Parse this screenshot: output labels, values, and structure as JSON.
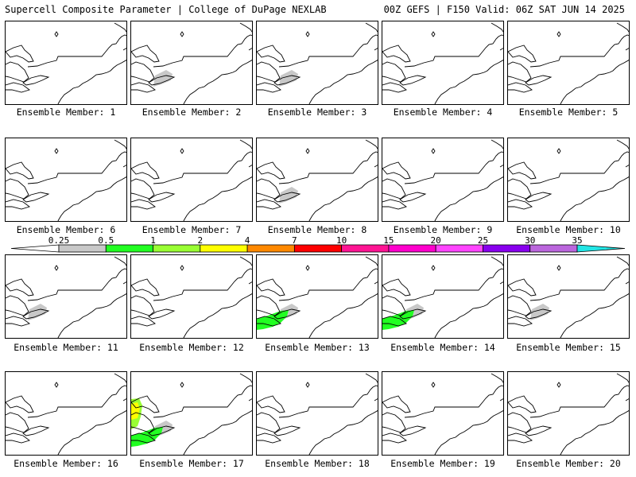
{
  "header": {
    "left": "Supercell Composite Parameter | College of DuPage NEXLAB",
    "right": "00Z GEFS | F150 Valid: 06Z SAT JUN 14 2025"
  },
  "caption_prefix": "Ensemble Member: ",
  "members": [
    {
      "number": "1",
      "shading": []
    },
    {
      "number": "2",
      "shading": [
        "gray"
      ]
    },
    {
      "number": "3",
      "shading": [
        "gray"
      ]
    },
    {
      "number": "4",
      "shading": []
    },
    {
      "number": "5",
      "shading": []
    },
    {
      "number": "6",
      "shading": []
    },
    {
      "number": "7",
      "shading": []
    },
    {
      "number": "8",
      "shading": [
        "gray"
      ]
    },
    {
      "number": "9",
      "shading": []
    },
    {
      "number": "10",
      "shading": []
    },
    {
      "number": "11",
      "shading": [
        "gray"
      ]
    },
    {
      "number": "12",
      "shading": []
    },
    {
      "number": "13",
      "shading": [
        "gray",
        "green"
      ]
    },
    {
      "number": "14",
      "shading": [
        "gray",
        "green"
      ]
    },
    {
      "number": "15",
      "shading": [
        "gray"
      ]
    },
    {
      "number": "16",
      "shading": []
    },
    {
      "number": "17",
      "shading": [
        "gray",
        "green",
        "lime",
        "yellow"
      ]
    },
    {
      "number": "18",
      "shading": []
    },
    {
      "number": "19",
      "shading": []
    },
    {
      "number": "20",
      "shading": []
    }
  ],
  "colorbar": {
    "labels": [
      "0.25",
      "0.5",
      "1",
      "2",
      "4",
      "7",
      "10",
      "15",
      "20",
      "25",
      "30",
      "35"
    ],
    "colors": [
      "#c8c8c8",
      "#22ff22",
      "#99ff33",
      "#ffff00",
      "#ff8800",
      "#ff0000",
      "#ff1493",
      "#ff00cc",
      "#ff44ff",
      "#8800ee",
      "#bb66dd",
      "#22e5e5"
    ]
  },
  "colors": {
    "outline": "#000000",
    "background": "#ffffff"
  }
}
